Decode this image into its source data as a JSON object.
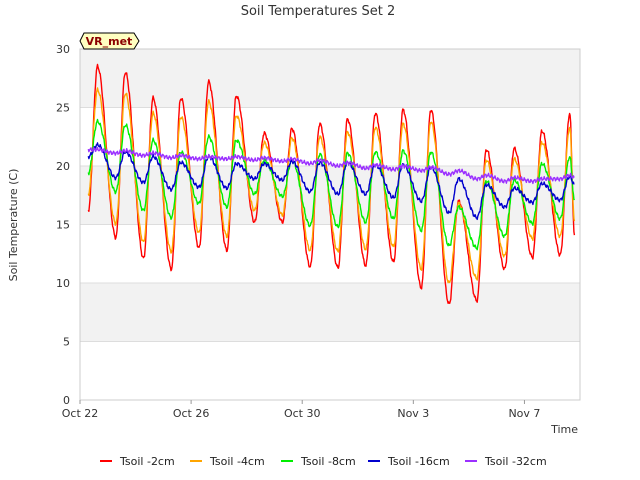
{
  "chart_data": {
    "type": "line",
    "title": "Soil Temperatures Set 2",
    "xlabel": "Time",
    "ylabel": "Soil Temperature (C)",
    "badge": "VR_met",
    "xlim": [
      "Oct 22",
      "Nov 9"
    ],
    "ylim": [
      0,
      30
    ],
    "x_ticks": [
      "Oct 22",
      "Oct 26",
      "Oct 30",
      "Nov 3",
      "Nov 7"
    ],
    "y_ticks": [
      "0",
      "5",
      "10",
      "15",
      "20",
      "25",
      "30"
    ],
    "grid": "horizontal banded",
    "legend_position": "bottom",
    "x_days": [
      "Oct 22",
      "Oct 23",
      "Oct 24",
      "Oct 25",
      "Oct 26",
      "Oct 27",
      "Oct 28",
      "Oct 29",
      "Oct 30",
      "Oct 31",
      "Nov 1",
      "Nov 2",
      "Nov 3",
      "Nov 4",
      "Nov 5",
      "Nov 6",
      "Nov 7",
      "Nov 8"
    ],
    "series": [
      {
        "name": "Tsoil -2cm",
        "color": "#ff0000",
        "start": 16.2,
        "end": 14.0,
        "daily_max": [
          28.5,
          28.0,
          25.8,
          25.8,
          27.2,
          26.0,
          22.8,
          23.2,
          23.6,
          24.0,
          24.5,
          24.8,
          24.8,
          17.0,
          21.4,
          21.5,
          23.0,
          24.5
        ],
        "daily_min": [
          13.6,
          13.9,
          12.1,
          11.2,
          13.0,
          12.8,
          15.2,
          15.2,
          11.4,
          11.3,
          11.5,
          11.8,
          9.6,
          8.2,
          8.5,
          11.2,
          12.2,
          12.4
        ]
      },
      {
        "name": "Tsoil -4cm",
        "color": "#ffa500",
        "start": 17.6,
        "end": 15.2,
        "daily_max": [
          26.5,
          26.2,
          24.5,
          24.2,
          25.5,
          24.3,
          22.0,
          22.4,
          22.5,
          22.9,
          23.3,
          23.6,
          23.8,
          16.8,
          20.5,
          20.6,
          22.0,
          23.3
        ],
        "daily_min": [
          15.4,
          15.1,
          13.5,
          12.7,
          14.3,
          14.0,
          16.2,
          15.8,
          12.8,
          12.7,
          12.9,
          13.1,
          11.2,
          10.0,
          10.4,
          12.3,
          13.8,
          14.0
        ]
      },
      {
        "name": "Tsoil -8cm",
        "color": "#00ee00",
        "start": 19.4,
        "end": 17.0,
        "daily_max": [
          23.8,
          23.5,
          22.2,
          21.2,
          22.5,
          22.2,
          20.5,
          20.5,
          21.0,
          21.1,
          21.2,
          21.3,
          21.2,
          16.5,
          18.7,
          18.8,
          20.2,
          20.8
        ],
        "daily_min": [
          17.2,
          17.8,
          16.2,
          15.6,
          16.8,
          16.5,
          17.6,
          17.4,
          14.9,
          14.8,
          15.2,
          15.5,
          14.5,
          13.2,
          13.0,
          14.0,
          15.1,
          15.5
        ]
      },
      {
        "name": "Tsoil -16cm",
        "color": "#0000cd",
        "start": 20.8,
        "end": 18.4,
        "daily_max": [
          21.8,
          21.2,
          20.8,
          20.3,
          20.8,
          20.2,
          20.2,
          20.4,
          20.3,
          20.3,
          20.1,
          20.1,
          19.9,
          18.9,
          18.4,
          18.1,
          18.5,
          19.1
        ],
        "daily_min": [
          19.0,
          19.0,
          18.6,
          18.0,
          18.2,
          18.1,
          18.9,
          18.8,
          17.8,
          17.6,
          17.6,
          17.3,
          17.0,
          16.0,
          15.6,
          16.5,
          16.9,
          17.1
        ]
      },
      {
        "name": "Tsoil -32cm",
        "color": "#9b30ff",
        "start": 21.4,
        "end": 19.0,
        "daily_max": [
          21.4,
          21.3,
          21.1,
          20.9,
          20.8,
          20.8,
          20.7,
          20.6,
          20.5,
          20.3,
          20.1,
          20.0,
          19.9,
          19.6,
          19.2,
          19.0,
          18.9,
          19.2
        ],
        "daily_min": [
          21.2,
          21.1,
          20.9,
          20.7,
          20.6,
          20.6,
          20.5,
          20.4,
          20.2,
          20.0,
          19.8,
          19.7,
          19.6,
          19.3,
          18.9,
          18.7,
          18.7,
          18.9
        ]
      }
    ]
  }
}
